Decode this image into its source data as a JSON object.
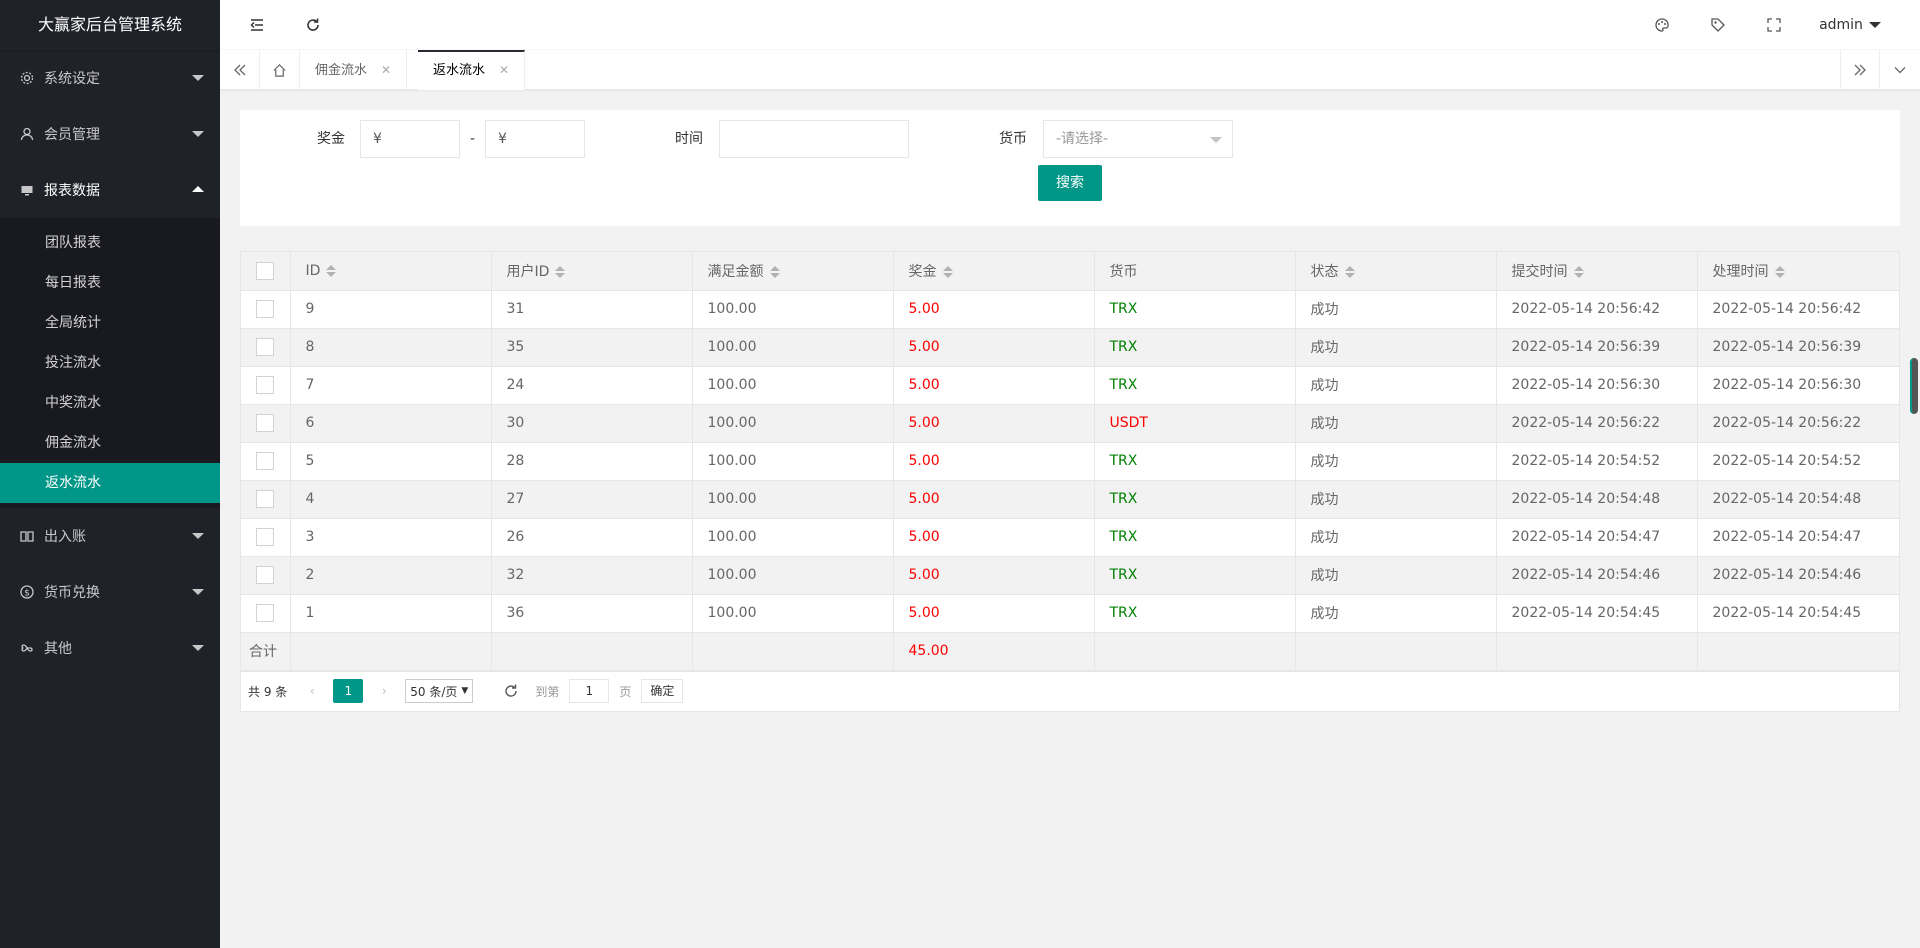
{
  "app_title": "大赢家后台管理系统",
  "sidebar": {
    "items": [
      {
        "label": "系统设定",
        "icon": "gear-icon"
      },
      {
        "label": "会员管理",
        "icon": "user-icon"
      },
      {
        "label": "报表数据",
        "icon": "monitor-icon"
      },
      {
        "label": "出入账",
        "icon": "book-icon"
      },
      {
        "label": "货币兑换",
        "icon": "dollar-icon"
      },
      {
        "label": "其他",
        "icon": "infinity-icon"
      }
    ],
    "subitems": [
      "团队报表",
      "每日报表",
      "全局统计",
      "投注流水",
      "中奖流水",
      "佣金流水",
      "返水流水"
    ]
  },
  "header": {
    "user": "admin"
  },
  "tabs": [
    {
      "label": "佣金流水"
    },
    {
      "label": "返水流水"
    }
  ],
  "filter": {
    "bonus_label": "奖金",
    "bonus_min": "¥",
    "dash": "-",
    "bonus_max": "¥",
    "time_label": "时间",
    "time_value": "",
    "currency_label": "货币",
    "currency_placeholder": "-请选择-",
    "search_label": "搜索"
  },
  "table": {
    "columns": [
      "ID",
      "用户ID",
      "满足金额",
      "奖金",
      "货币",
      "状态",
      "提交时间",
      "处理时间"
    ],
    "rows": [
      [
        "9",
        "31",
        "100.00",
        "5.00",
        "TRX",
        "成功",
        "2022-05-14 20:56:42",
        "2022-05-14 20:56:42"
      ],
      [
        "8",
        "35",
        "100.00",
        "5.00",
        "TRX",
        "成功",
        "2022-05-14 20:56:39",
        "2022-05-14 20:56:39"
      ],
      [
        "7",
        "24",
        "100.00",
        "5.00",
        "TRX",
        "成功",
        "2022-05-14 20:56:30",
        "2022-05-14 20:56:30"
      ],
      [
        "6",
        "30",
        "100.00",
        "5.00",
        "USDT",
        "成功",
        "2022-05-14 20:56:22",
        "2022-05-14 20:56:22"
      ],
      [
        "5",
        "28",
        "100.00",
        "5.00",
        "TRX",
        "成功",
        "2022-05-14 20:54:52",
        "2022-05-14 20:54:52"
      ],
      [
        "4",
        "27",
        "100.00",
        "5.00",
        "TRX",
        "成功",
        "2022-05-14 20:54:48",
        "2022-05-14 20:54:48"
      ],
      [
        "3",
        "26",
        "100.00",
        "5.00",
        "TRX",
        "成功",
        "2022-05-14 20:54:47",
        "2022-05-14 20:54:47"
      ],
      [
        "2",
        "32",
        "100.00",
        "5.00",
        "TRX",
        "成功",
        "2022-05-14 20:54:46",
        "2022-05-14 20:54:46"
      ],
      [
        "1",
        "36",
        "100.00",
        "5.00",
        "TRX",
        "成功",
        "2022-05-14 20:54:45",
        "2022-05-14 20:54:45"
      ]
    ],
    "total_label": "合计",
    "total_bonus": "45.00"
  },
  "pager": {
    "count": "共 9 条",
    "current": "1",
    "per_page": "50 条/页",
    "goto_label": "到第",
    "goto_value": "1",
    "page_unit": "页",
    "confirm": "确定"
  },
  "colors": {
    "accent": "#009688",
    "sidebar": "#20222a",
    "red": "#ff0000",
    "green": "#008000"
  }
}
